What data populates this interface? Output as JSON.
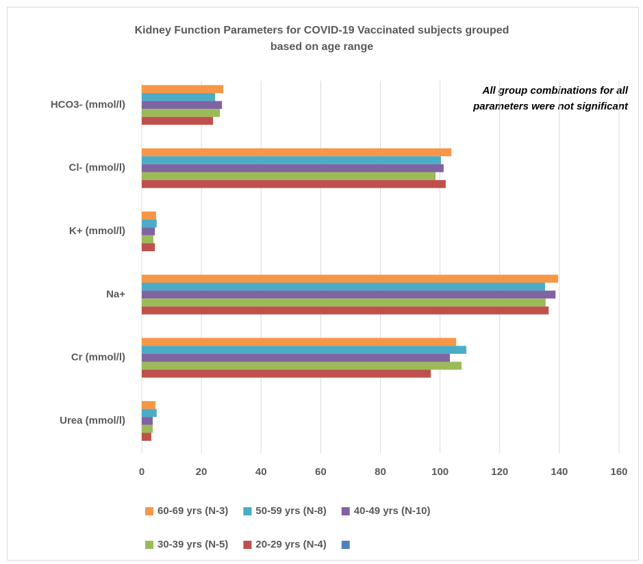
{
  "chart_data": {
    "type": "bar",
    "orientation": "horizontal",
    "title": [
      "Kidney Function Parameters for COVID-19 Vaccinated subjects grouped",
      "based on age range"
    ],
    "annotation": [
      "All group combinations for all",
      "parameters were not significant"
    ],
    "categories": [
      "Urea (mmol/l)",
      "Cr (mmol/l)",
      "Na+",
      "K+ (mmol/l)",
      "Cl- (mmol/l)",
      "HCO3- (mmol/l)"
    ],
    "series": [
      {
        "name": "60-69 yrs (N-3)",
        "color": "#f79646",
        "values": [
          4.6,
          105.4,
          139.6,
          4.8,
          103.8,
          27.3
        ]
      },
      {
        "name": "50-59 yrs (N-8)",
        "color": "#4bacc6",
        "values": [
          5.0,
          108.8,
          135.2,
          5.0,
          100.3,
          24.6
        ]
      },
      {
        "name": "40-49 yrs (N-10)",
        "color": "#8064a2",
        "values": [
          3.7,
          103.3,
          138.7,
          4.4,
          101.2,
          26.9
        ]
      },
      {
        "name": "30-39 yrs (N-5)",
        "color": "#9bbb59",
        "values": [
          3.7,
          107.2,
          135.4,
          3.9,
          98.5,
          26.2
        ]
      },
      {
        "name": "20-29 yrs (N-4)",
        "color": "#c0504d",
        "values": [
          3.2,
          96.9,
          136.4,
          4.4,
          101.9,
          23.9
        ]
      },
      {
        "name": null,
        "color": "#4f81bd",
        "values": [
          null,
          null,
          null,
          null,
          null,
          null
        ]
      }
    ],
    "xlim": [
      0,
      160
    ],
    "xticks": [
      0,
      20,
      40,
      60,
      80,
      100,
      120,
      140,
      160
    ],
    "grid": true
  }
}
